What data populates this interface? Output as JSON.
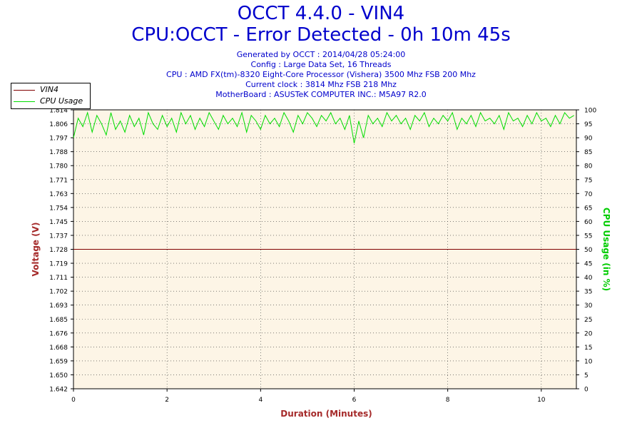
{
  "header": {
    "title_line1": "OCCT 4.4.0 - VIN4",
    "title_line2": "CPU:OCCT - Error Detected - 0h 10m 45s",
    "info": [
      "Generated by OCCT : 2014/04/28 05:24:00",
      "Config : Large Data Set, 16 Threads",
      "CPU : AMD FX(tm)-8320 Eight-Core Processor (Vishera) 3500 Mhz FSB 200 Mhz",
      "Current clock : 3814 Mhz FSB 218 Mhz",
      "MotherBoard : ASUSTeK COMPUTER INC.: M5A97 R2.0"
    ]
  },
  "colors": {
    "title": "#0000cc",
    "plot_background": "#fdf5e6",
    "vin4_series": "#800000",
    "cpu_series": "#00dd00",
    "left_axis_label": "#a52a2a",
    "right_axis_label": "#00cc00",
    "x_axis_label": "#a52a2a"
  },
  "chart_data": {
    "type": "line",
    "xlabel": "Duration (Minutes)",
    "ylabel_left": "Voltage (V)",
    "ylabel_right": "CPU Usage (in %)",
    "xlim": [
      0,
      10.75
    ],
    "ylim_left": [
      1.642,
      1.814
    ],
    "ylim_right": [
      0,
      100
    ],
    "grid": true,
    "legend_position": "top-left",
    "x_ticks": [
      "0",
      "2",
      "4",
      "6",
      "8",
      "10"
    ],
    "x_tick_values": [
      0,
      2,
      4,
      6,
      8,
      10
    ],
    "y_left_ticks": [
      "1.814",
      "1.806",
      "1.797",
      "1.788",
      "1.780",
      "1.771",
      "1.763",
      "1.754",
      "1.745",
      "1.737",
      "1.728",
      "1.719",
      "1.711",
      "1.702",
      "1.693",
      "1.685",
      "1.676",
      "1.668",
      "1.659",
      "1.650",
      "1.642"
    ],
    "y_right_ticks": [
      "100",
      "95",
      "90",
      "85",
      "80",
      "75",
      "70",
      "65",
      "60",
      "55",
      "50",
      "45",
      "40",
      "35",
      "30",
      "25",
      "20",
      "15",
      "10",
      "5",
      "0"
    ],
    "series": [
      {
        "name": "VIN4",
        "axis": "left",
        "x": [
          0,
          10.75
        ],
        "y": [
          1.728,
          1.728
        ]
      },
      {
        "name": "CPU Usage",
        "axis": "right",
        "x": [
          0,
          0.1,
          0.2,
          0.3,
          0.4,
          0.5,
          0.6,
          0.7,
          0.8,
          0.9,
          1.0,
          1.1,
          1.2,
          1.3,
          1.4,
          1.5,
          1.6,
          1.7,
          1.8,
          1.9,
          2.0,
          2.1,
          2.2,
          2.3,
          2.4,
          2.5,
          2.6,
          2.7,
          2.8,
          2.9,
          3.0,
          3.1,
          3.2,
          3.3,
          3.4,
          3.5,
          3.6,
          3.7,
          3.8,
          3.9,
          4.0,
          4.1,
          4.2,
          4.3,
          4.4,
          4.5,
          4.6,
          4.7,
          4.8,
          4.9,
          5.0,
          5.1,
          5.2,
          5.3,
          5.4,
          5.5,
          5.6,
          5.7,
          5.8,
          5.9,
          6.0,
          6.1,
          6.2,
          6.3,
          6.4,
          6.5,
          6.6,
          6.7,
          6.8,
          6.9,
          7.0,
          7.1,
          7.2,
          7.3,
          7.4,
          7.5,
          7.6,
          7.7,
          7.8,
          7.9,
          8.0,
          8.1,
          8.2,
          8.3,
          8.4,
          8.5,
          8.6,
          8.7,
          8.8,
          8.9,
          9.0,
          9.1,
          9.2,
          9.3,
          9.4,
          9.5,
          9.6,
          9.7,
          9.8,
          9.9,
          10.0,
          10.1,
          10.2,
          10.3,
          10.4,
          10.5,
          10.6,
          10.7
        ],
        "y": [
          90,
          97,
          94,
          99,
          92,
          98,
          95,
          91,
          99,
          93,
          96,
          92,
          98,
          94,
          97,
          91,
          99,
          95,
          93,
          98,
          94,
          97,
          92,
          99,
          95,
          98,
          93,
          97,
          94,
          99,
          96,
          93,
          98,
          95,
          97,
          94,
          99,
          92,
          98,
          96,
          93,
          98,
          95,
          97,
          94,
          99,
          96,
          92,
          98,
          95,
          99,
          97,
          94,
          98,
          96,
          99,
          95,
          97,
          93,
          98,
          88,
          96,
          90,
          98,
          95,
          97,
          94,
          99,
          96,
          98,
          95,
          97,
          93,
          98,
          96,
          99,
          94,
          97,
          95,
          98,
          96,
          99,
          93,
          97,
          95,
          98,
          94,
          99,
          96,
          97,
          95,
          98,
          93,
          99,
          96,
          97,
          94,
          98,
          95,
          99,
          96,
          97,
          94,
          98,
          95,
          99,
          97,
          98
        ]
      }
    ]
  }
}
